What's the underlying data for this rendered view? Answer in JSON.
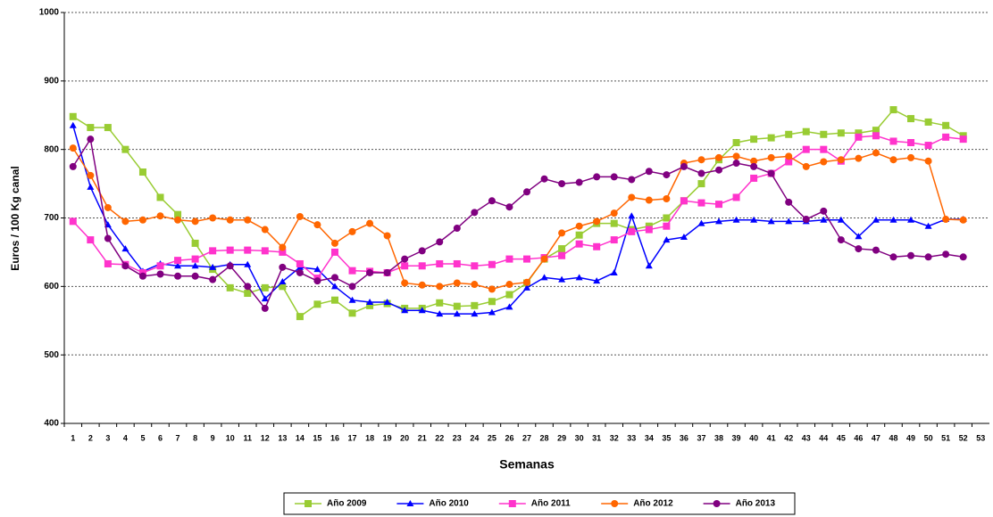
{
  "chart_data": {
    "type": "line",
    "y_axis_label": "Euros / 100 Kg canal",
    "x_axis_label": "Semanas",
    "categories": [
      "1",
      "2",
      "3",
      "4",
      "5",
      "6",
      "7",
      "8",
      "9",
      "10",
      "11",
      "12",
      "13",
      "14",
      "15",
      "16",
      "17",
      "18",
      "19",
      "20",
      "21",
      "22",
      "23",
      "24",
      "25",
      "26",
      "27",
      "28",
      "29",
      "30",
      "31",
      "32",
      "33",
      "34",
      "35",
      "36",
      "37",
      "38",
      "39",
      "40",
      "41",
      "42",
      "43",
      "44",
      "45",
      "46",
      "47",
      "48",
      "49",
      "50",
      "51",
      "52",
      "53"
    ],
    "ylim": [
      400,
      1000
    ],
    "yticks": [
      400,
      500,
      600,
      700,
      800,
      900,
      1000
    ],
    "grid": true,
    "legend": "bottom",
    "series": [
      {
        "name": "Año 2009",
        "color": "#99cc33",
        "marker": "square",
        "values": [
          848,
          832,
          832,
          800,
          767,
          730,
          705,
          663,
          625,
          598,
          590,
          598,
          600,
          556,
          574,
          580,
          561,
          572,
          575,
          568,
          568,
          576,
          571,
          572,
          578,
          588,
          605,
          640,
          655,
          675,
          692,
          692,
          683,
          688,
          700,
          725,
          750,
          785,
          810,
          815,
          817,
          822,
          826,
          822,
          824,
          824,
          828,
          858,
          845,
          840,
          835,
          820,
          null
        ]
      },
      {
        "name": "Año 2010",
        "color": "#0000ff",
        "marker": "triangle",
        "values": [
          835,
          745,
          690,
          655,
          622,
          633,
          630,
          630,
          628,
          632,
          632,
          582,
          607,
          628,
          625,
          600,
          580,
          577,
          577,
          565,
          565,
          560,
          560,
          560,
          562,
          570,
          598,
          613,
          610,
          613,
          608,
          620,
          703,
          630,
          668,
          672,
          692,
          695,
          697,
          697,
          695,
          695,
          695,
          697,
          697,
          673,
          697,
          697,
          697,
          688,
          698,
          698,
          null
        ]
      },
      {
        "name": "Año 2011",
        "color": "#ff33cc",
        "marker": "square",
        "values": [
          695,
          668,
          633,
          632,
          620,
          630,
          638,
          640,
          652,
          653,
          653,
          652,
          650,
          633,
          612,
          650,
          623,
          622,
          620,
          630,
          630,
          633,
          633,
          630,
          632,
          640,
          640,
          642,
          645,
          662,
          658,
          668,
          680,
          683,
          688,
          725,
          722,
          720,
          730,
          758,
          765,
          782,
          800,
          800,
          783,
          818,
          820,
          812,
          810,
          806,
          818,
          815,
          null
        ]
      },
      {
        "name": "Año 2012",
        "color": "#ff6600",
        "marker": "circle",
        "values": [
          802,
          762,
          715,
          695,
          697,
          703,
          697,
          695,
          700,
          697,
          697,
          683,
          657,
          702,
          690,
          663,
          680,
          692,
          674,
          605,
          602,
          600,
          605,
          603,
          596,
          603,
          606,
          640,
          678,
          688,
          695,
          707,
          730,
          726,
          728,
          780,
          785,
          788,
          790,
          783,
          788,
          790,
          775,
          782,
          785,
          787,
          795,
          785,
          788,
          783,
          698,
          697,
          null
        ]
      },
      {
        "name": "Año 2013",
        "color": "#800080",
        "marker": "circle",
        "values": [
          775,
          815,
          670,
          630,
          615,
          618,
          615,
          615,
          610,
          630,
          600,
          568,
          628,
          620,
          608,
          613,
          600,
          620,
          620,
          640,
          652,
          665,
          685,
          708,
          725,
          716,
          738,
          757,
          750,
          752,
          760,
          760,
          756,
          768,
          763,
          775,
          765,
          770,
          780,
          775,
          765,
          723,
          698,
          710,
          668,
          655,
          653,
          643,
          645,
          643,
          647,
          643,
          null
        ]
      }
    ]
  }
}
